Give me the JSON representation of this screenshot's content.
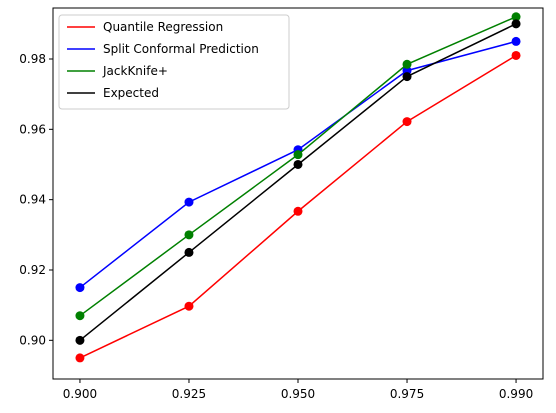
{
  "chart_data": {
    "type": "line",
    "title": "",
    "xlabel": "",
    "ylabel": "",
    "categories": [
      "0.900",
      "0.925",
      "0.950",
      "0.975",
      "0.990"
    ],
    "ylim": [
      0.889,
      0.9945
    ],
    "yticks": [
      0.9,
      0.92,
      0.94,
      0.96,
      0.98
    ],
    "ytick_labels": [
      "0.90",
      "0.92",
      "0.94",
      "0.96",
      "0.98"
    ],
    "grid": false,
    "legend_position": "upper-left",
    "series": [
      {
        "name": "Quantile Regression",
        "color": "#ff0000",
        "values": [
          0.895,
          0.9097,
          0.9367,
          0.9622,
          0.981
        ]
      },
      {
        "name": "Split Conformal Prediction",
        "color": "#0000ff",
        "values": [
          0.915,
          0.9393,
          0.9542,
          0.9767,
          0.985
        ]
      },
      {
        "name": "JackKnife+",
        "color": "#008000",
        "values": [
          0.907,
          0.93,
          0.9528,
          0.9785,
          0.992
        ]
      },
      {
        "name": "Expected",
        "color": "#000000",
        "values": [
          0.9,
          0.925,
          0.95,
          0.975,
          0.99
        ]
      }
    ]
  }
}
